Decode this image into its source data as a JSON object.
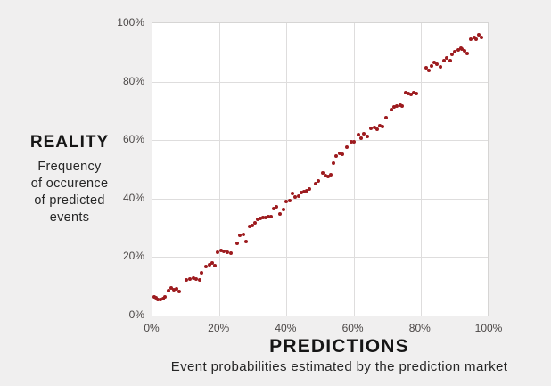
{
  "colors": {
    "background": "#f0efef",
    "plot_background": "#ffffff",
    "gridline": "#dedddd",
    "plot_border": "#d6d5d4",
    "dot": "#9d1b1f",
    "text": "#1e1e1e",
    "tick_text": "#4b4746"
  },
  "chart_data": {
    "type": "scatter",
    "title": "",
    "x_axis": {
      "label": "PREDICTIONS",
      "sublabel": "Event probabilities estimated by the prediction market",
      "ticks": [
        "0%",
        "20%",
        "40%",
        "60%",
        "80%",
        "100%"
      ],
      "range": [
        0,
        100
      ],
      "grid": true
    },
    "y_axis": {
      "label": "REALITY",
      "sublabel_lines": [
        "Frequency",
        "of occurence",
        "of predicted",
        "events"
      ],
      "ticks": [
        "0%",
        "20%",
        "40%",
        "60%",
        "80%",
        "100%"
      ],
      "range": [
        0,
        100
      ],
      "grid": true
    },
    "legend": "none",
    "point_color": "#9d1b1f",
    "points": [
      [
        0.4,
        6.3
      ],
      [
        1.0,
        6.0
      ],
      [
        1.7,
        5.6
      ],
      [
        2.4,
        5.5
      ],
      [
        3.1,
        5.9
      ],
      [
        3.8,
        6.4
      ],
      [
        4.8,
        8.4
      ],
      [
        5.6,
        9.4
      ],
      [
        6.4,
        8.9
      ],
      [
        7.2,
        9.2
      ],
      [
        8.0,
        8.3
      ],
      [
        10.1,
        12.1
      ],
      [
        11.2,
        12.5
      ],
      [
        12.2,
        12.9
      ],
      [
        13.0,
        12.5
      ],
      [
        14.0,
        12.2
      ],
      [
        14.7,
        14.6
      ],
      [
        16.0,
        16.8
      ],
      [
        16.9,
        17.4
      ],
      [
        17.8,
        18.0
      ],
      [
        18.6,
        17.2
      ],
      [
        19.5,
        21.5
      ],
      [
        20.5,
        22.4
      ],
      [
        21.4,
        22.0
      ],
      [
        22.3,
        21.6
      ],
      [
        23.3,
        21.2
      ],
      [
        25.2,
        24.7
      ],
      [
        26.1,
        27.4
      ],
      [
        27.0,
        27.7
      ],
      [
        27.8,
        25.4
      ],
      [
        29.0,
        30.4
      ],
      [
        29.9,
        30.9
      ],
      [
        30.7,
        31.8
      ],
      [
        31.5,
        32.8
      ],
      [
        32.3,
        33.1
      ],
      [
        33.1,
        33.4
      ],
      [
        33.9,
        33.5
      ],
      [
        34.7,
        33.7
      ],
      [
        35.5,
        33.9
      ],
      [
        36.1,
        36.5
      ],
      [
        36.9,
        37.1
      ],
      [
        38.0,
        34.9
      ],
      [
        39.0,
        36.3
      ],
      [
        39.9,
        39.0
      ],
      [
        40.9,
        39.4
      ],
      [
        41.8,
        41.8
      ],
      [
        42.6,
        40.6
      ],
      [
        43.5,
        40.9
      ],
      [
        44.4,
        42.1
      ],
      [
        45.2,
        42.4
      ],
      [
        46.0,
        42.8
      ],
      [
        46.9,
        43.3
      ],
      [
        48.7,
        45.2
      ],
      [
        49.6,
        46.1
      ],
      [
        50.8,
        48.8
      ],
      [
        51.6,
        47.9
      ],
      [
        52.5,
        47.7
      ],
      [
        53.3,
        48.3
      ],
      [
        54.1,
        52.0
      ],
      [
        54.9,
        54.5
      ],
      [
        55.8,
        55.5
      ],
      [
        56.7,
        55.1
      ],
      [
        58.1,
        57.6
      ],
      [
        59.2,
        59.5
      ],
      [
        60.1,
        59.4
      ],
      [
        61.4,
        61.9
      ],
      [
        62.2,
        60.7
      ],
      [
        63.1,
        62.2
      ],
      [
        64.0,
        61.3
      ],
      [
        65.2,
        64.1
      ],
      [
        66.1,
        64.4
      ],
      [
        67.0,
        63.8
      ],
      [
        67.9,
        65.0
      ],
      [
        68.7,
        64.5
      ],
      [
        69.8,
        67.7
      ],
      [
        71.3,
        70.4
      ],
      [
        72.2,
        71.3
      ],
      [
        73.0,
        71.6
      ],
      [
        73.9,
        72.0
      ],
      [
        74.6,
        71.7
      ],
      [
        75.4,
        76.2
      ],
      [
        76.2,
        75.9
      ],
      [
        77.0,
        75.7
      ],
      [
        77.9,
        76.3
      ],
      [
        78.8,
        76.0
      ],
      [
        81.6,
        84.8
      ],
      [
        82.4,
        83.9
      ],
      [
        83.2,
        85.4
      ],
      [
        84.0,
        86.6
      ],
      [
        84.9,
        86.0
      ],
      [
        85.8,
        85.2
      ],
      [
        87.0,
        87.2
      ],
      [
        87.8,
        88.1
      ],
      [
        88.7,
        87.3
      ],
      [
        89.4,
        89.3
      ],
      [
        90.2,
        90.2
      ],
      [
        91.2,
        90.9
      ],
      [
        91.9,
        91.5
      ],
      [
        92.4,
        91.2
      ],
      [
        93.1,
        90.6
      ],
      [
        93.9,
        89.6
      ],
      [
        94.9,
        94.5
      ],
      [
        95.9,
        95.2
      ],
      [
        96.6,
        94.6
      ],
      [
        97.4,
        96.1
      ],
      [
        98.2,
        95.2
      ]
    ]
  }
}
